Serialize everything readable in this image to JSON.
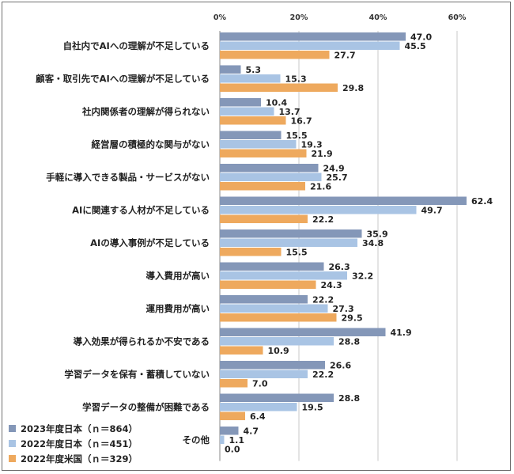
{
  "colors": {
    "s2023jp": "#8497b8",
    "s2022jp": "#a9c4e4",
    "s2022us": "#eea95e",
    "axis": "#888888",
    "grid": "#c8c8c8"
  },
  "chart_data": {
    "type": "bar",
    "orientation": "horizontal",
    "xlim": [
      0,
      70
    ],
    "xticks": [
      "0%",
      "20%",
      "40%",
      "60%"
    ],
    "xtick_values": [
      0,
      20,
      40,
      60
    ],
    "grid": true,
    "legend_position": "bottom-left",
    "categories": [
      "自社内でAIへの理解が不足している",
      "顧客・取引先でAIへの理解が不足している",
      "社内関係者の理解が得られない",
      "経営層の積極的な関与がない",
      "手軽に導入できる製品・サービスがない",
      "AIに関連する人材が不足している",
      "AIの導入事例が不足している",
      "導入費用が高い",
      "運用費用が高い",
      "導入効果が得られるか不安である",
      "学習データを保有・蓄積していない",
      "学習データの整備が困難である",
      "その他"
    ],
    "series": [
      {
        "name": "2023年度日本（ｎ＝864）",
        "values": [
          47.0,
          5.3,
          10.4,
          15.5,
          24.9,
          62.4,
          35.9,
          26.3,
          22.2,
          41.9,
          26.6,
          28.8,
          4.7
        ]
      },
      {
        "name": "2022年度日本（ｎ＝451）",
        "values": [
          45.5,
          15.3,
          13.7,
          19.3,
          25.7,
          49.7,
          34.8,
          32.2,
          27.3,
          28.8,
          22.2,
          19.5,
          1.1
        ]
      },
      {
        "name": "2022年度米国（ｎ＝329）",
        "values": [
          27.7,
          29.8,
          16.7,
          21.9,
          21.6,
          22.2,
          15.5,
          24.3,
          29.5,
          10.9,
          7.0,
          6.4,
          0.0
        ]
      }
    ]
  }
}
